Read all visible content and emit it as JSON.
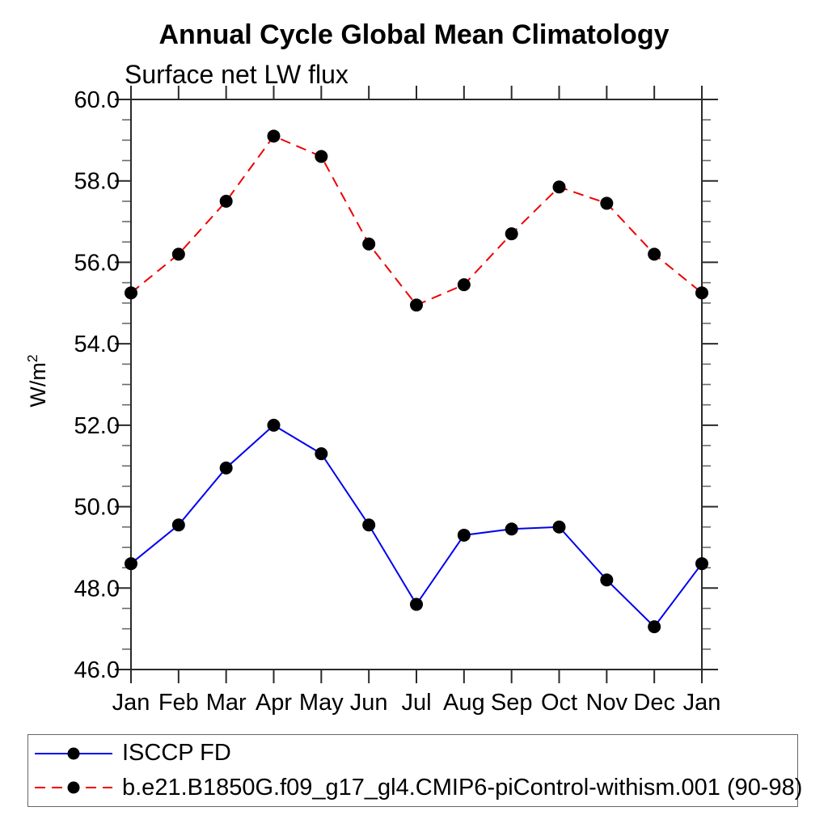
{
  "page": {
    "background": "#ffffff"
  },
  "chart_data": {
    "type": "line",
    "title": "Annual Cycle Global Mean Climatology",
    "subtitle": "Surface net LW flux",
    "xlabel": "",
    "ylabel": "W/m²",
    "ylabel_base": "W/m",
    "ylabel_sup": "2",
    "ylim": [
      46.0,
      60.0
    ],
    "ytick_major": 2.0,
    "ytick_minor": 0.5,
    "ytick_decimals": 1,
    "grid": false,
    "frame": "box-with-outward-ticks",
    "legend_position": "bottom-left-box",
    "categories": [
      "Jan",
      "Feb",
      "Mar",
      "Apr",
      "May",
      "Jun",
      "Jul",
      "Aug",
      "Sep",
      "Oct",
      "Nov",
      "Dec",
      "Jan"
    ],
    "series": [
      {
        "name": "ISCCP FD",
        "color": "#0000ee",
        "line_style": "solid",
        "line_width": 2,
        "marker": "filled-circle",
        "marker_color": "#000000",
        "values": [
          48.6,
          49.55,
          50.95,
          52.0,
          51.3,
          49.55,
          47.6,
          49.3,
          49.45,
          49.5,
          48.2,
          47.05,
          48.6
        ]
      },
      {
        "name": "b.e21.B1850G.f09_g17_gl4.CMIP6-piControl-withism.001 (90-98)",
        "color": "#ee0000",
        "line_style": "dashed",
        "line_width": 2,
        "marker": "filled-circle",
        "marker_color": "#000000",
        "values": [
          55.25,
          56.2,
          57.5,
          59.1,
          58.6,
          56.45,
          54.95,
          55.45,
          56.7,
          57.85,
          57.45,
          56.2,
          55.25
        ]
      }
    ]
  }
}
